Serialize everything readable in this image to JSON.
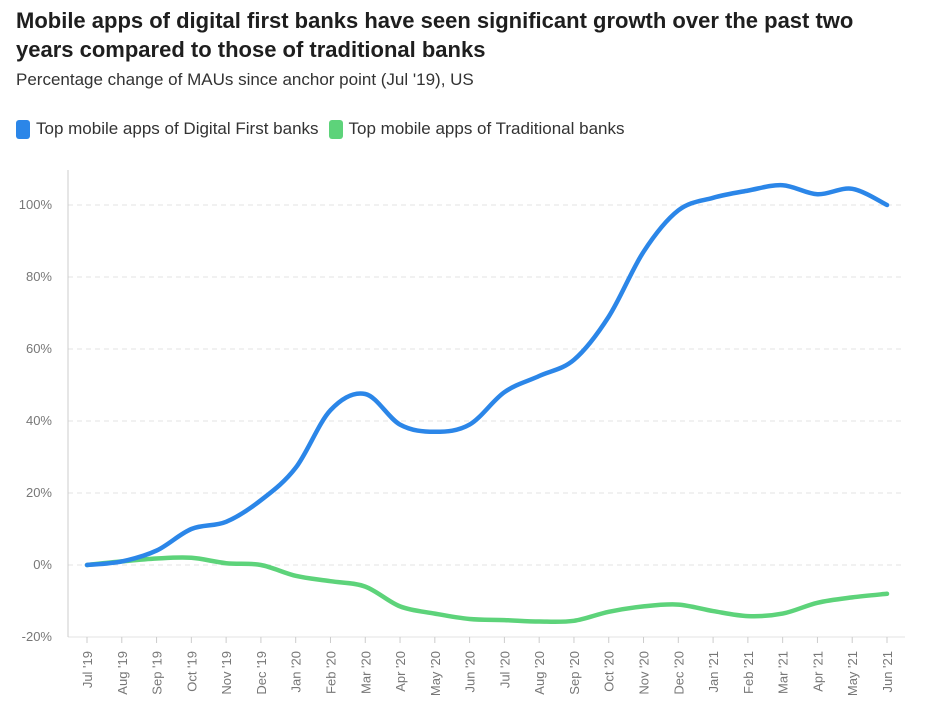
{
  "title": "Mobile apps of digital first banks have seen significant growth over the past two years compared to those of traditional banks",
  "subtitle": "Percentage change of MAUs since anchor point (Jul '19), US",
  "colors": {
    "digital": "#2b86e8",
    "traditional": "#5dd37a",
    "grid": "#e3e3e3",
    "axis": "#cccccc"
  },
  "chart_data": {
    "type": "line",
    "title": "Mobile apps of digital first banks have seen significant growth over the past two years compared to those of traditional banks",
    "subtitle": "Percentage change of MAUs since anchor point (Jul '19), US",
    "xlabel": "",
    "ylabel": "",
    "ylim": [
      -20,
      110
    ],
    "yticks": [
      -20,
      0,
      20,
      40,
      60,
      80,
      100
    ],
    "ytick_labels": [
      "-20%",
      "0%",
      "20%",
      "40%",
      "60%",
      "80%",
      "100%"
    ],
    "grid": true,
    "legend_position": "top-left",
    "categories": [
      "Jul '19",
      "Aug '19",
      "Sep '19",
      "Oct '19",
      "Nov '19",
      "Dec '19",
      "Jan '20",
      "Feb '20",
      "Mar '20",
      "Apr '20",
      "May '20",
      "Jun '20",
      "Jul '20",
      "Aug '20",
      "Sep '20",
      "Oct '20",
      "Nov '20",
      "Dec '20",
      "Jan '21",
      "Feb '21",
      "Mar '21",
      "Apr '21",
      "May '21",
      "Jun '21"
    ],
    "series": [
      {
        "name": "Top mobile apps of Digital First banks",
        "values": [
          0,
          1,
          4,
          10,
          12,
          18,
          27,
          43,
          47.5,
          39,
          37,
          39,
          48,
          52.5,
          57,
          69,
          87,
          98.5,
          102,
          104,
          105.5,
          103,
          104.5,
          100
        ]
      },
      {
        "name": "Top mobile apps of Traditional banks",
        "values": [
          0,
          1,
          1.8,
          2,
          0.5,
          0,
          -3,
          -4.5,
          -6,
          -11.5,
          -13.5,
          -15,
          -15.3,
          -15.7,
          -15.5,
          -13,
          -11.5,
          -11,
          -12.8,
          -14.2,
          -13.5,
          -10.5,
          -9,
          -8
        ]
      }
    ]
  }
}
